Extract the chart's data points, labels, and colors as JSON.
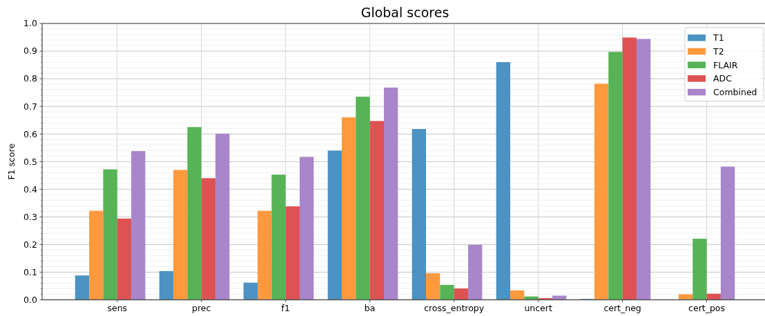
{
  "chart_data": {
    "type": "bar",
    "title": "Global scores",
    "ylabel": "F1 score",
    "categories": [
      "sens",
      "prec",
      "f1",
      "ba",
      "cross_entropy",
      "uncert",
      "cert_neg",
      "cert_pos"
    ],
    "series": [
      {
        "name": "T1",
        "color": "#4c92c3",
        "values": [
          0.088,
          0.104,
          0.062,
          0.54,
          0.618,
          0.86,
          0.003,
          null
        ]
      },
      {
        "name": "T2",
        "color": "#ff993e",
        "values": [
          0.322,
          0.47,
          0.322,
          0.66,
          0.096,
          0.034,
          0.782,
          0.02
        ]
      },
      {
        "name": "FLAIR",
        "color": "#56b356",
        "values": [
          0.472,
          0.625,
          0.453,
          0.735,
          0.054,
          0.012,
          0.897,
          0.221
        ]
      },
      {
        "name": "ADC",
        "color": "#de5253",
        "values": [
          0.294,
          0.44,
          0.338,
          0.647,
          0.041,
          0.006,
          0.949,
          0.022
        ]
      },
      {
        "name": "Combined",
        "color": "#a985ca",
        "values": [
          0.538,
          0.601,
          0.517,
          0.768,
          0.199,
          0.015,
          0.944,
          0.482
        ]
      }
    ],
    "ylim": [
      0,
      1
    ],
    "yticks": [
      {
        "value": 0,
        "label": "0.0"
      },
      {
        "value": 0.02,
        "label": null
      },
      {
        "value": 0.04,
        "label": null
      },
      {
        "value": 0.06,
        "label": null
      },
      {
        "value": 0.08,
        "label": null
      },
      0.1,
      {
        "value": 0.12,
        "label": null
      },
      {
        "value": 0.14,
        "label": null
      },
      {
        "value": 0.16,
        "label": null
      },
      {
        "value": 0.18,
        "label": null
      },
      0.2,
      {
        "value": 0.22,
        "label": null
      },
      {
        "value": 0.24,
        "label": null
      },
      {
        "value": 0.26,
        "label": null
      },
      {
        "value": 0.28,
        "label": null
      },
      0.3,
      {
        "value": 0.32,
        "label": null
      },
      {
        "value": 0.34,
        "label": null
      },
      {
        "value": 0.36,
        "label": null
      },
      {
        "value": 0.38,
        "label": null
      },
      0.4,
      {
        "value": 0.42,
        "label": null
      },
      {
        "value": 0.44,
        "label": null
      },
      {
        "value": 0.46,
        "label": null
      },
      {
        "value": 0.48,
        "label": null
      },
      0.5,
      {
        "value": 0.52,
        "label": null
      },
      {
        "value": 0.54,
        "label": null
      },
      {
        "value": 0.56,
        "label": null
      },
      {
        "value": 0.58,
        "label": null
      },
      0.6,
      {
        "value": 0.62,
        "label": null
      },
      {
        "value": 0.64,
        "label": null
      },
      {
        "value": 0.66,
        "label": null
      },
      {
        "value": 0.68,
        "label": null
      },
      0.7,
      {
        "value": 0.72,
        "label": null
      },
      {
        "value": 0.74,
        "label": null
      },
      {
        "value": 0.76,
        "label": null
      },
      {
        "value": 0.78,
        "label": null
      },
      0.8,
      {
        "value": 0.82,
        "label": null
      },
      {
        "value": 0.84,
        "label": null
      },
      {
        "value": 0.86,
        "label": null
      },
      {
        "value": 0.88,
        "label": null
      },
      0.9,
      {
        "value": 0.92,
        "label": null
      },
      {
        "value": 0.94,
        "label": null
      },
      {
        "value": 0.96,
        "label": null
      },
      {
        "value": 0.98,
        "label": null
      },
      {
        "value": 1,
        "label": "1.0"
      }
    ],
    "grid": true,
    "legend": "top right"
  }
}
